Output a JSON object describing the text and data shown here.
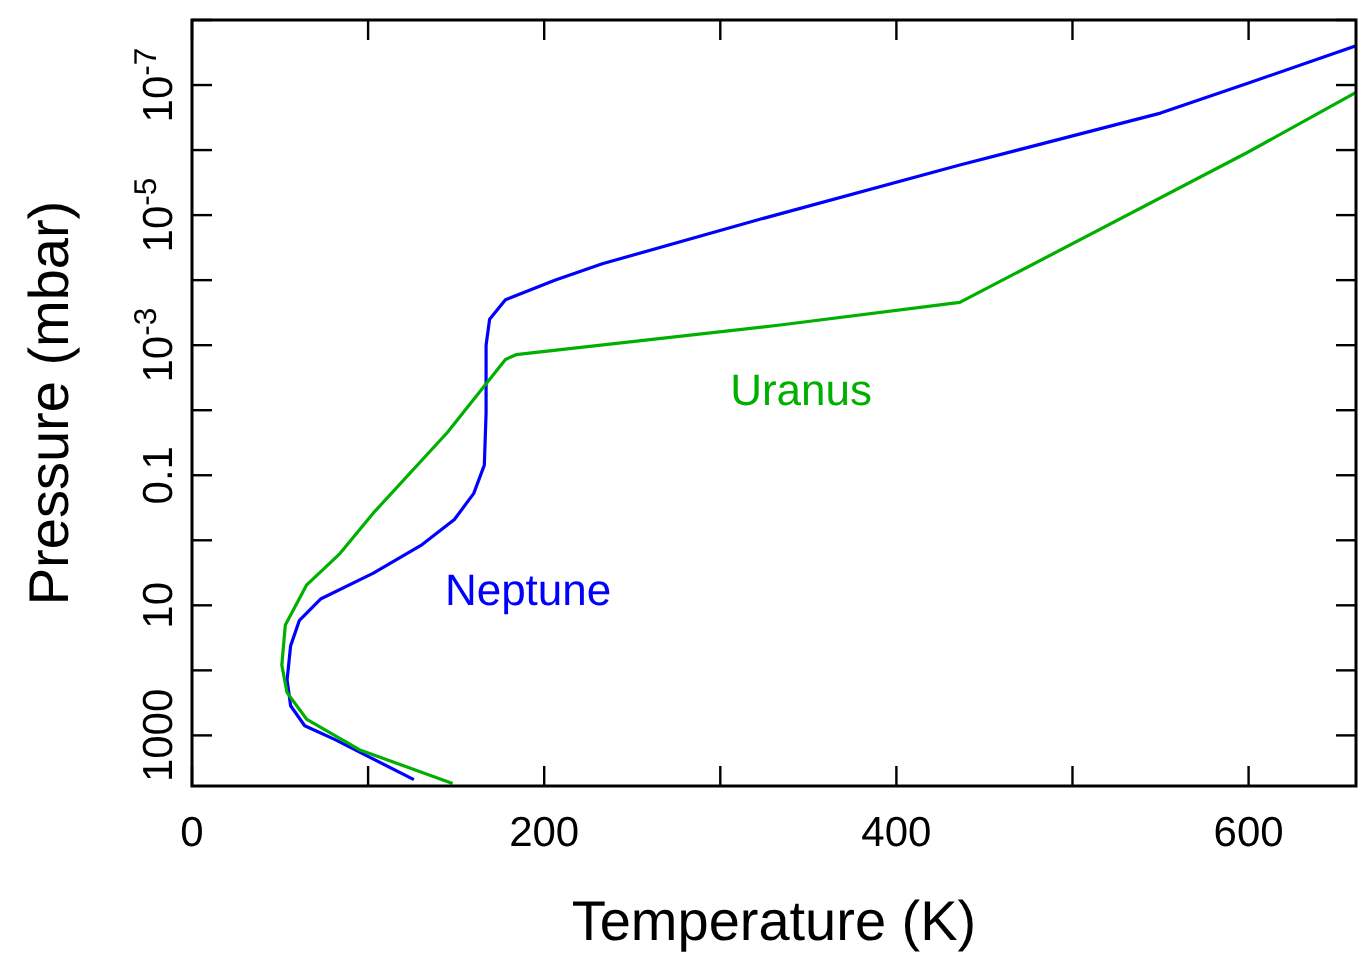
{
  "chart_data": {
    "type": "line",
    "xlabel": "Temperature (K)",
    "ylabel": "Pressure (mbar)",
    "log": "y",
    "grid": false,
    "legend": false,
    "marker": "none",
    "line_style": "solid",
    "xlim": [
      0,
      661
    ],
    "xticks": [
      0,
      {
        "value": 100,
        "label": null
      },
      200,
      {
        "value": 300,
        "label": null
      },
      400,
      {
        "value": 500,
        "label": null
      },
      600
    ],
    "ylim": [
      6000,
      1e-08
    ],
    "yticks": [
      1000,
      {
        "value": 100,
        "label": null
      },
      10,
      {
        "value": 1,
        "label": null
      },
      0.1,
      {
        "value": 0.01,
        "label": null
      },
      {
        "value": 0.001,
        "label": "10$^{-3}$"
      },
      {
        "value": 0.0001,
        "label": null
      },
      {
        "value": 1e-05,
        "label": "10$^{-5}$"
      },
      {
        "value": 1e-06,
        "label": null
      },
      {
        "value": 1e-07,
        "label": "10$^{-7}$"
      },
      {
        "value": 1e-08,
        "label": null
      }
    ],
    "series": [
      {
        "name": "Neptune",
        "color": "#0000ff",
        "x": [
          126,
          81,
          64,
          56,
          54,
          56,
          61,
          73,
          103,
          130,
          149,
          160,
          166,
          167,
          167,
          169,
          178,
          206,
          233,
          323,
          436,
          550,
          600,
          661
        ],
        "values": [
          4800,
          1150,
          710,
          350,
          140,
          42,
          17,
          8,
          3.2,
          1.2,
          0.48,
          0.19,
          0.07,
          0.011,
          0.001,
          0.0004,
          0.0002,
          0.0001,
          5.6e-05,
          1.15e-05,
          1.7e-06,
          2.7e-07,
          9.3e-08,
          2.5e-08
        ]
      },
      {
        "name": "Uranus",
        "color": "#00b000",
        "x": [
          148,
          95,
          65,
          54,
          51,
          53,
          65,
          84,
          103,
          145,
          178,
          184,
          334,
          436,
          599,
          661
        ],
        "values": [
          5500,
          1660,
          560,
          220,
          83,
          20,
          4.9,
          1.6,
          0.38,
          0.022,
          0.00166,
          0.0014,
          0.00049,
          0.00022,
          1.1e-06,
          1.3e-07
        ]
      }
    ]
  }
}
